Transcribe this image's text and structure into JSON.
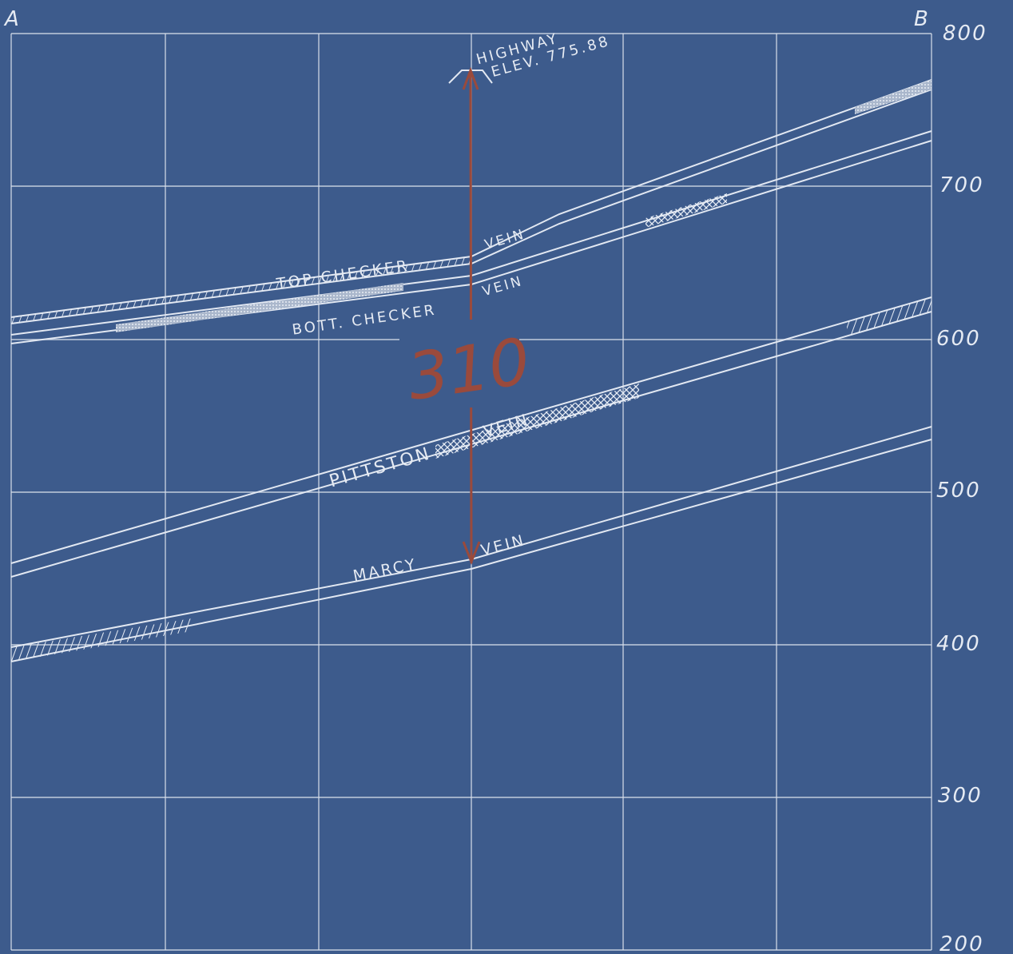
{
  "section": {
    "end_left": "A",
    "end_right": "B",
    "elevation_labels": [
      "800",
      "700",
      "600",
      "500",
      "400",
      "300",
      "200"
    ],
    "highway_label_line1": "HIGHWAY",
    "highway_label_line2": "ELEV. 775.88",
    "interval_value": "310",
    "veins": [
      {
        "name_prefix": "TOP CHECKER",
        "name_suffix": "VEIN"
      },
      {
        "name_prefix": "BOTT. CHECKER",
        "name_suffix": "VEIN"
      },
      {
        "name_prefix": "PITTSTON",
        "name_suffix": "VEIN"
      },
      {
        "name_prefix": "MARCY",
        "name_suffix": "VEIN"
      }
    ]
  },
  "colors": {
    "paper": "#3d5b8c",
    "chalk": "#e2e8f2",
    "arrow": "#9a4a3c"
  }
}
